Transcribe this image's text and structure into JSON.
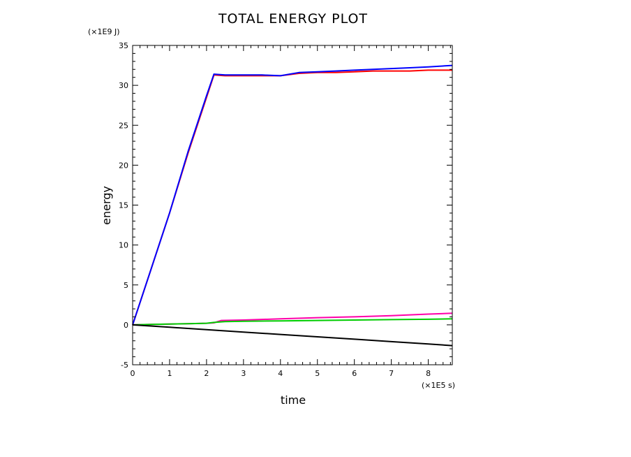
{
  "chart_data": {
    "type": "line",
    "title": "TOTAL ENERGY PLOT",
    "xlabel": "time",
    "ylabel": "energy",
    "x_multiplier": "(×1E5 s)",
    "y_multiplier": "(×1E9 J)",
    "xlim": [
      0,
      8.65
    ],
    "ylim": [
      -5,
      35
    ],
    "xticks": [
      0,
      1,
      2,
      3,
      4,
      5,
      6,
      7,
      8
    ],
    "yticks": [
      -5,
      0,
      5,
      10,
      15,
      20,
      25,
      30,
      35
    ],
    "grid": false,
    "series": [
      {
        "name": "series-red",
        "color": "#ff0000",
        "x": [
          0,
          0.5,
          1.0,
          1.5,
          2.0,
          2.2,
          2.5,
          3.0,
          3.5,
          4.0,
          4.5,
          5.0,
          5.5,
          6.0,
          6.5,
          7.0,
          7.5,
          8.0,
          8.65
        ],
        "y": [
          0,
          7,
          14,
          21.5,
          28.5,
          31.3,
          31.2,
          31.2,
          31.2,
          31.2,
          31.5,
          31.6,
          31.6,
          31.7,
          31.8,
          31.8,
          31.8,
          31.9,
          31.9
        ]
      },
      {
        "name": "series-blue",
        "color": "#0000ff",
        "x": [
          0,
          0.5,
          1.0,
          1.5,
          2.0,
          2.2,
          2.5,
          3.0,
          3.5,
          4.0,
          4.5,
          5.0,
          5.5,
          6.0,
          6.5,
          7.0,
          7.5,
          8.0,
          8.65
        ],
        "y": [
          0,
          7,
          14,
          21.7,
          28.7,
          31.4,
          31.3,
          31.3,
          31.3,
          31.2,
          31.6,
          31.7,
          31.8,
          31.9,
          32.0,
          32.1,
          32.2,
          32.3,
          32.5
        ]
      },
      {
        "name": "series-magenta",
        "color": "#ff00aa",
        "x": [
          0,
          0.5,
          1.0,
          1.5,
          2.0,
          2.2,
          2.4,
          3.0,
          4.0,
          5.0,
          6.0,
          7.0,
          8.0,
          8.65
        ],
        "y": [
          0,
          0.05,
          0.1,
          0.15,
          0.2,
          0.25,
          0.55,
          0.6,
          0.75,
          0.9,
          1.0,
          1.15,
          1.35,
          1.45
        ]
      },
      {
        "name": "series-green",
        "color": "#00cc00",
        "x": [
          0,
          0.5,
          1.0,
          1.5,
          2.0,
          2.2,
          2.5,
          3.0,
          4.0,
          5.0,
          6.0,
          7.0,
          8.0,
          8.65
        ],
        "y": [
          0,
          0.05,
          0.1,
          0.15,
          0.2,
          0.3,
          0.4,
          0.45,
          0.5,
          0.55,
          0.6,
          0.65,
          0.7,
          0.75
        ]
      },
      {
        "name": "series-black",
        "color": "#000000",
        "x": [
          0,
          1,
          2,
          3,
          4,
          5,
          6,
          7,
          8,
          8.65
        ],
        "y": [
          0,
          -0.3,
          -0.6,
          -0.9,
          -1.2,
          -1.5,
          -1.8,
          -2.1,
          -2.4,
          -2.6
        ]
      }
    ]
  }
}
